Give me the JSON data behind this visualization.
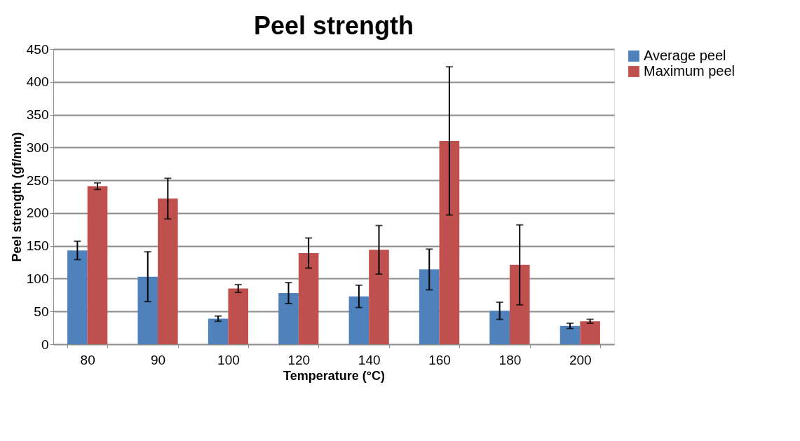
{
  "chart_data": {
    "type": "bar",
    "title": "Peel strength",
    "xlabel": "Temperature (°C)",
    "ylabel": "Peel strength (gf/mm)",
    "categories": [
      "80",
      "90",
      "100",
      "120",
      "140",
      "160",
      "180",
      "200"
    ],
    "series": [
      {
        "name": "Average peel",
        "color": "#4f81bd",
        "values": [
          143,
          103,
          39,
          78,
          73,
          114,
          51,
          28
        ],
        "errors": [
          14,
          38,
          4,
          16,
          17,
          31,
          13,
          4
        ]
      },
      {
        "name": "Maximum peel",
        "color": "#c0504d",
        "values": [
          241,
          222,
          85,
          139,
          144,
          310,
          121,
          35
        ],
        "errors": [
          5,
          31,
          6,
          23,
          37,
          113,
          61,
          3
        ]
      }
    ],
    "ylim": [
      0,
      450
    ],
    "yticks": [
      0,
      50,
      100,
      150,
      200,
      250,
      300,
      350,
      400,
      450
    ],
    "grid": "y",
    "legend": "right"
  }
}
